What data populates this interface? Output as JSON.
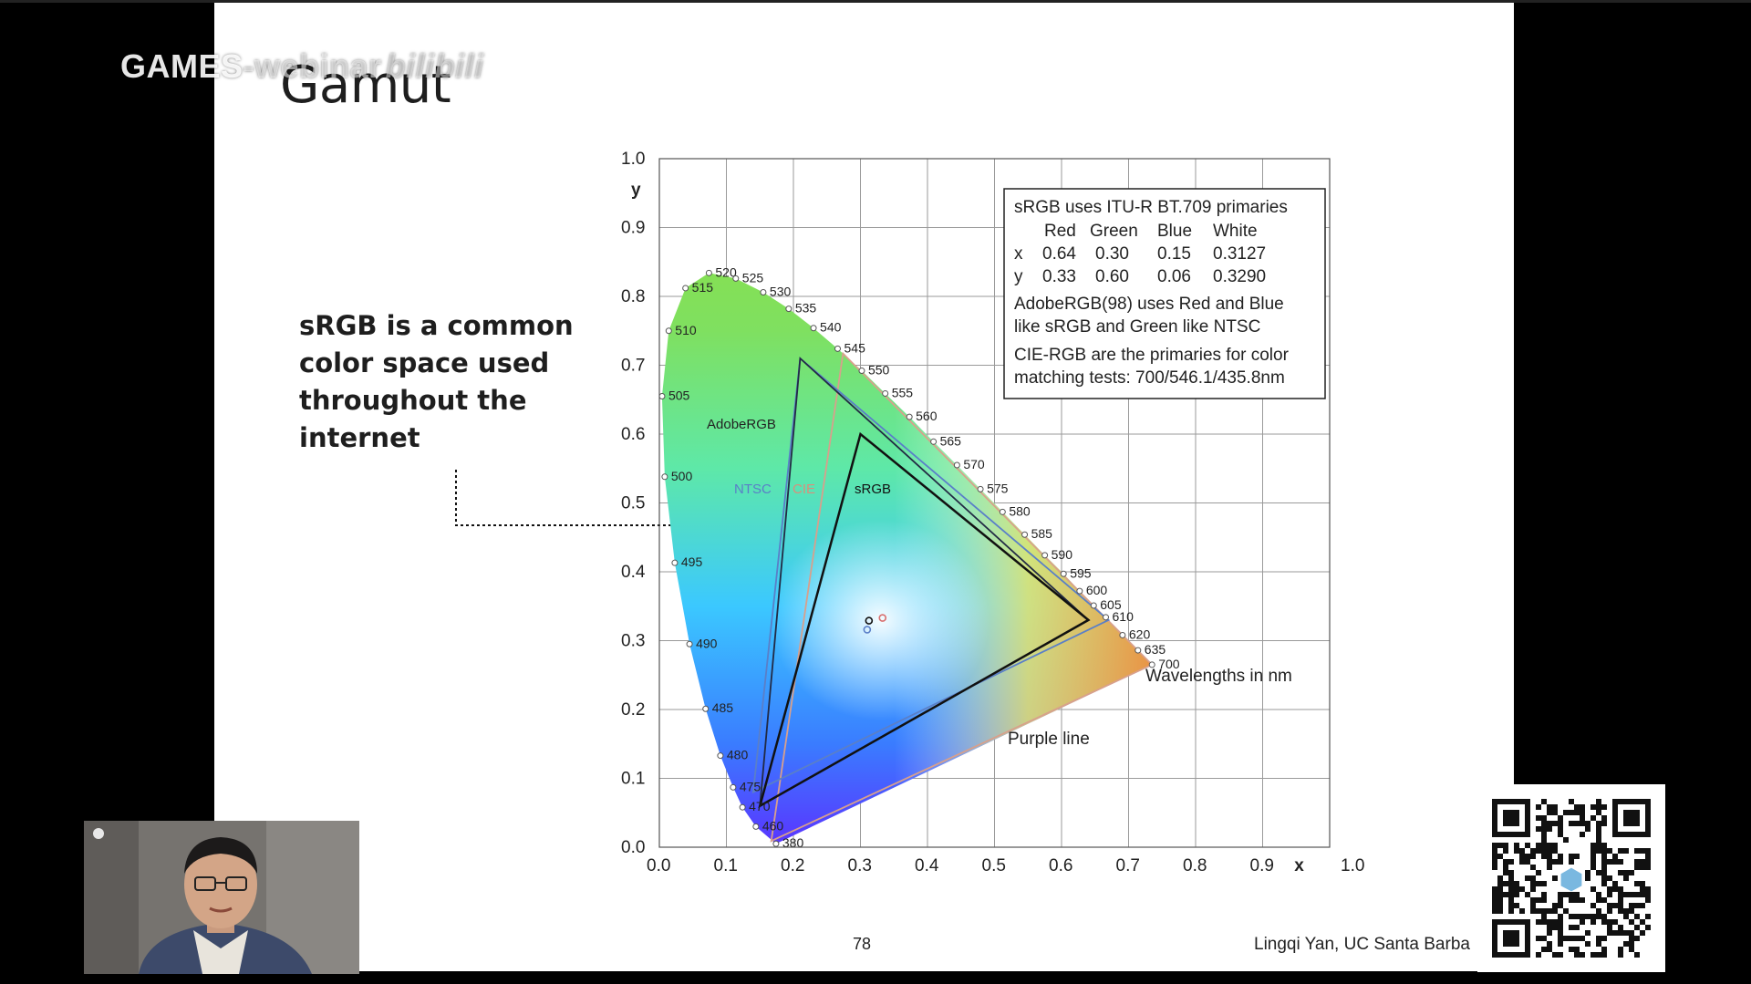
{
  "watermark": {
    "prefix": "GAMES",
    "faded": "-webinar",
    "brand": "bilibili"
  },
  "slide": {
    "title": "Gamut",
    "bullet_lines": [
      "sRGB is a common",
      "color space used",
      "throughout the",
      "internet"
    ],
    "page_number": "78",
    "credit": "Lingqi Yan, UC Santa Barba"
  },
  "chart_data": {
    "type": "scatter",
    "xlabel": "x",
    "ylabel": "y",
    "xlim": [
      0.0,
      1.0
    ],
    "ylim": [
      0.0,
      1.0
    ],
    "x_ticks": [
      "0.0",
      "0.1",
      "0.2",
      "0.3",
      "0.4",
      "0.5",
      "0.6",
      "0.7",
      "0.8",
      "0.9",
      "1.0"
    ],
    "y_ticks": [
      "0.0",
      "0.1",
      "0.2",
      "0.3",
      "0.4",
      "0.5",
      "0.6",
      "0.7",
      "0.8",
      "0.9",
      "1.0"
    ],
    "grid": true,
    "spectral_locus": [
      {
        "nm": "380",
        "x": 0.174,
        "y": 0.005
      },
      {
        "nm": "460",
        "x": 0.144,
        "y": 0.03
      },
      {
        "nm": "470",
        "x": 0.124,
        "y": 0.058
      },
      {
        "nm": "475",
        "x": 0.11,
        "y": 0.087
      },
      {
        "nm": "480",
        "x": 0.091,
        "y": 0.133
      },
      {
        "nm": "485",
        "x": 0.069,
        "y": 0.201
      },
      {
        "nm": "490",
        "x": 0.045,
        "y": 0.295
      },
      {
        "nm": "495",
        "x": 0.023,
        "y": 0.413
      },
      {
        "nm": "500",
        "x": 0.008,
        "y": 0.538
      },
      {
        "nm": "505",
        "x": 0.004,
        "y": 0.655
      },
      {
        "nm": "510",
        "x": 0.014,
        "y": 0.75
      },
      {
        "nm": "515",
        "x": 0.039,
        "y": 0.812
      },
      {
        "nm": "520",
        "x": 0.074,
        "y": 0.834
      },
      {
        "nm": "525",
        "x": 0.114,
        "y": 0.826
      },
      {
        "nm": "530",
        "x": 0.155,
        "y": 0.806
      },
      {
        "nm": "535",
        "x": 0.193,
        "y": 0.782
      },
      {
        "nm": "540",
        "x": 0.23,
        "y": 0.754
      },
      {
        "nm": "545",
        "x": 0.266,
        "y": 0.724
      },
      {
        "nm": "550",
        "x": 0.302,
        "y": 0.692
      },
      {
        "nm": "555",
        "x": 0.337,
        "y": 0.659
      },
      {
        "nm": "560",
        "x": 0.373,
        "y": 0.625
      },
      {
        "nm": "565",
        "x": 0.409,
        "y": 0.589
      },
      {
        "nm": "570",
        "x": 0.444,
        "y": 0.555
      },
      {
        "nm": "575",
        "x": 0.479,
        "y": 0.52
      },
      {
        "nm": "580",
        "x": 0.512,
        "y": 0.487
      },
      {
        "nm": "585",
        "x": 0.545,
        "y": 0.454
      },
      {
        "nm": "590",
        "x": 0.575,
        "y": 0.424
      },
      {
        "nm": "595",
        "x": 0.603,
        "y": 0.397
      },
      {
        "nm": "600",
        "x": 0.627,
        "y": 0.372
      },
      {
        "nm": "605",
        "x": 0.648,
        "y": 0.351
      },
      {
        "nm": "610",
        "x": 0.666,
        "y": 0.334
      },
      {
        "nm": "620",
        "x": 0.691,
        "y": 0.308
      },
      {
        "nm": "635",
        "x": 0.714,
        "y": 0.286
      },
      {
        "nm": "700",
        "x": 0.735,
        "y": 0.265
      }
    ],
    "gamuts": [
      {
        "name": "sRGB",
        "color": "#111111",
        "points": [
          [
            0.64,
            0.33
          ],
          [
            0.3,
            0.6
          ],
          [
            0.15,
            0.06
          ]
        ]
      },
      {
        "name": "AdobeRGB",
        "color": "#222a44",
        "points": [
          [
            0.64,
            0.33
          ],
          [
            0.21,
            0.71
          ],
          [
            0.15,
            0.06
          ]
        ]
      },
      {
        "name": "NTSC",
        "color": "#5a7fc8",
        "points": [
          [
            0.67,
            0.33
          ],
          [
            0.21,
            0.71
          ],
          [
            0.14,
            0.08
          ]
        ]
      },
      {
        "name": "CIE",
        "color": "#d8a08c",
        "points": [
          [
            0.735,
            0.265
          ],
          [
            0.274,
            0.717
          ],
          [
            0.167,
            0.009
          ]
        ]
      }
    ],
    "white_points": [
      {
        "x": 0.3127,
        "y": 0.329,
        "color": "#111111"
      },
      {
        "x": 0.31,
        "y": 0.316,
        "color": "#5a7fc8"
      },
      {
        "x": 0.333,
        "y": 0.333,
        "color": "#d87070"
      }
    ],
    "gamut_labels": [
      "AdobeRGB",
      "NTSC",
      "CIE",
      "sRGB"
    ],
    "annotations": {
      "wavelengths": "Wavelengths in nm",
      "purple_line": "Purple line"
    },
    "info_box": {
      "line1": "sRGB uses ITU-R BT.709 primaries",
      "headers": [
        "Red",
        "Green",
        "Blue",
        "White"
      ],
      "row_x": [
        "x",
        "0.64",
        "0.30",
        "0.15",
        "0.3127"
      ],
      "row_y": [
        "y",
        "0.33",
        "0.60",
        "0.06",
        "0.3290"
      ],
      "line_adobe_1": "AdobeRGB(98) uses Red and Blue",
      "line_adobe_2": "like sRGB and Green like NTSC",
      "line_cie_1": "CIE-RGB are the primaries for color",
      "line_cie_2": "matching tests: 700/546.1/435.8nm"
    }
  }
}
